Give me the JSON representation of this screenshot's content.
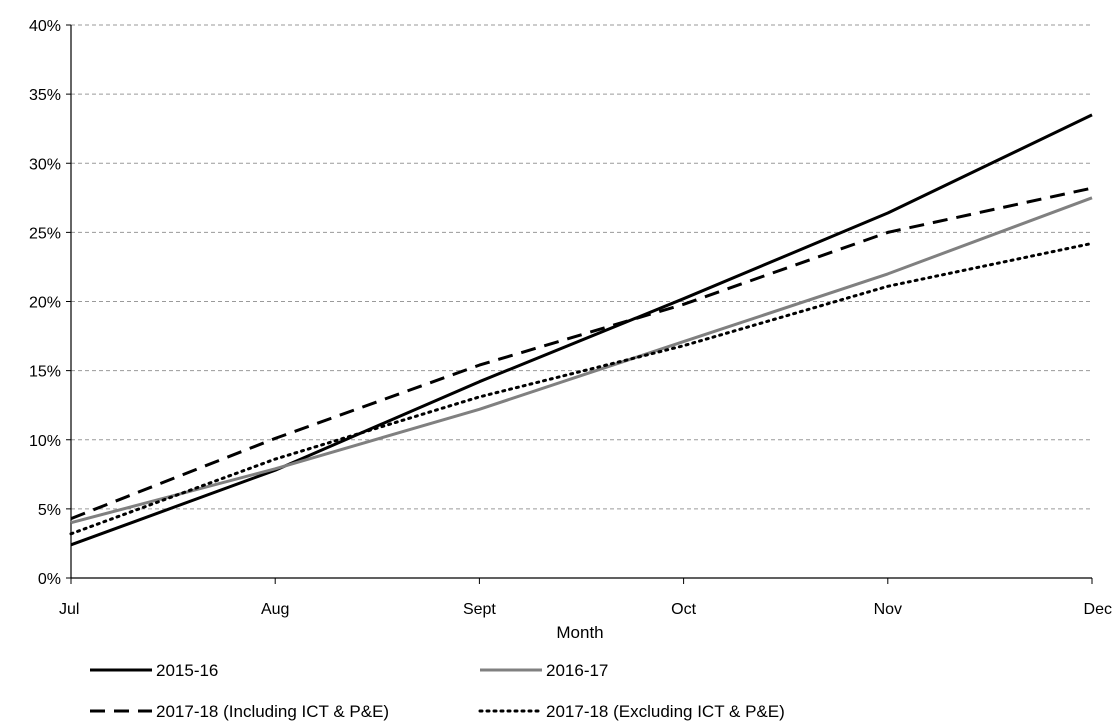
{
  "chart_data": {
    "type": "line",
    "categories": [
      "Jul",
      "Aug",
      "Sept",
      "Oct",
      "Nov",
      "Dec"
    ],
    "xlabel": "Month",
    "ylabel": "",
    "title": "",
    "ylim": [
      0,
      40
    ],
    "y_ticks": [
      0,
      5,
      10,
      15,
      20,
      25,
      30,
      35,
      40
    ],
    "y_tick_suffix": "%",
    "grid": "horizontal dashed",
    "legend_placement": "bottom",
    "series": [
      {
        "name": "2015-16",
        "values": [
          2.4,
          7.8,
          14.2,
          20.2,
          26.4,
          33.5
        ],
        "color": "#000000",
        "style": "solid"
      },
      {
        "name": "2016-17",
        "values": [
          4.0,
          7.9,
          12.2,
          17.1,
          22.0,
          27.5
        ],
        "color": "#808080",
        "style": "solid"
      },
      {
        "name": "2017-18  (Including ICT & P&E)",
        "values": [
          4.3,
          10.1,
          15.4,
          19.8,
          25.0,
          28.2
        ],
        "color": "#000000",
        "style": "dashed"
      },
      {
        "name": "2017-18  (Excluding ICT & P&E)",
        "values": [
          3.2,
          8.6,
          13.1,
          16.8,
          21.1,
          24.2
        ],
        "color": "#000000",
        "style": "dotted"
      }
    ]
  }
}
